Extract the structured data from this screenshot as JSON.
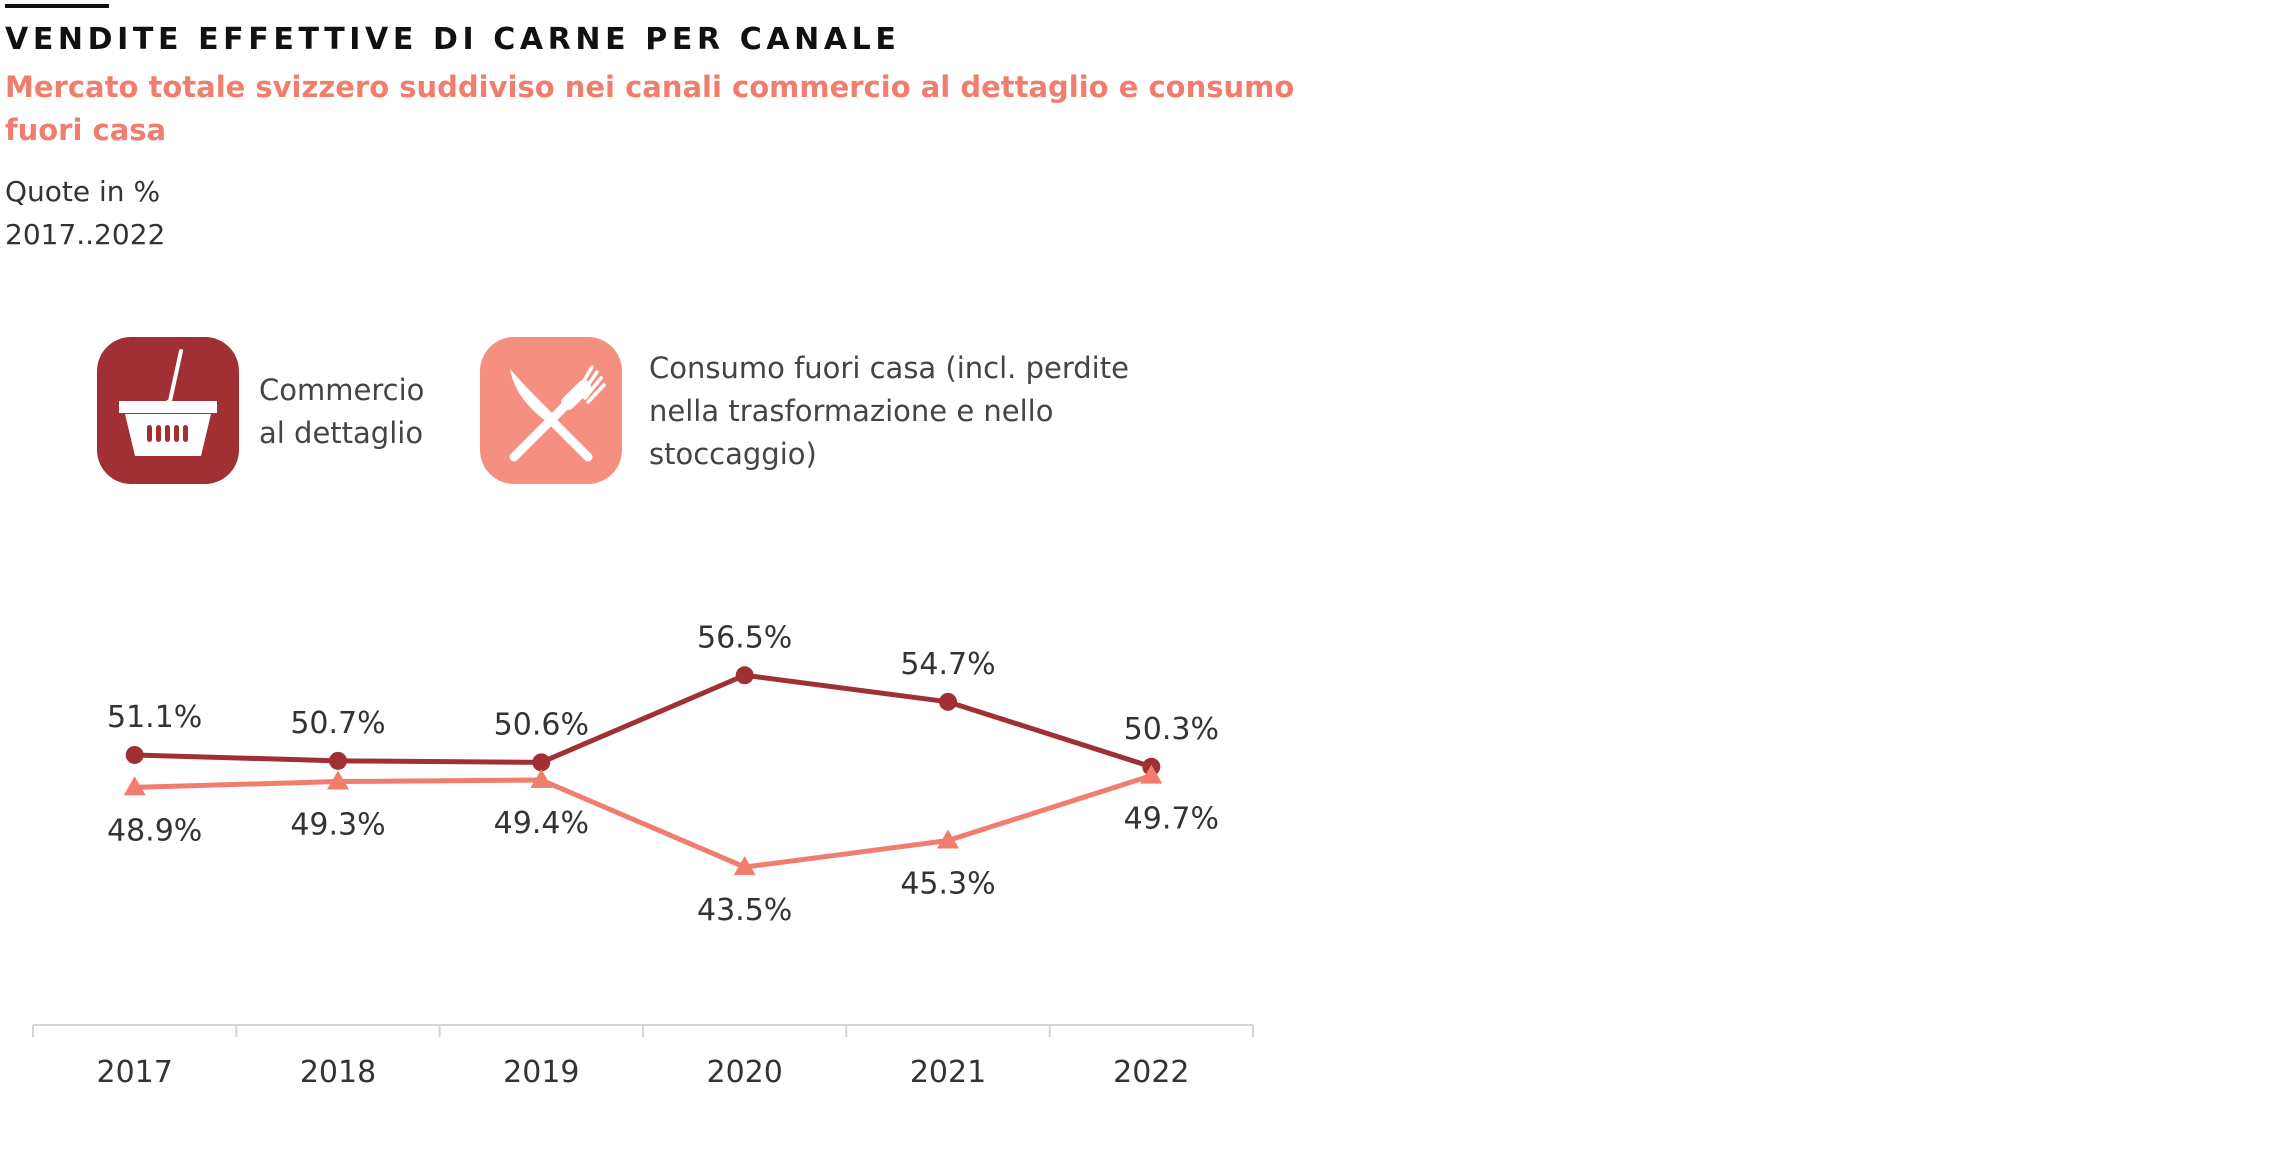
{
  "title": "VENDITE EFFETTIVE DI CARNE PER CANALE",
  "subtitle": "Mercato totale svizzero suddiviso nei canali commercio al dettaglio e consumo fuori casa",
  "units": "Quote in %",
  "period": "2017..2022",
  "colors": {
    "retail": "#a13035",
    "food_service": "#f17d6e",
    "food_service_icon": "#f48f82",
    "axis": "#d4d4d4",
    "label": "#333333"
  },
  "legend": {
    "retail": {
      "icon": "shopping-basket-icon",
      "label": "Commercio al dettaglio"
    },
    "food_service": {
      "icon": "knife-fork-icon",
      "label": "Consumo fuori casa (incl. perdite nella trasformazione e nello stoccaggio)"
    }
  },
  "chart_data": {
    "type": "line",
    "categories": [
      "2017",
      "2018",
      "2019",
      "2020",
      "2021",
      "2022"
    ],
    "series": [
      {
        "name": "Commercio al dettaglio",
        "marker": "circle",
        "values": [
          51.1,
          50.7,
          50.6,
          56.5,
          54.7,
          50.3
        ],
        "labels": [
          "51.1%",
          "50.7%",
          "50.6%",
          "56.5%",
          "54.7%",
          "50.3%"
        ]
      },
      {
        "name": "Consumo fuori casa (incl. perdite nella trasformazione e nello stoccaggio)",
        "marker": "triangle",
        "values": [
          48.9,
          49.3,
          49.4,
          43.5,
          45.3,
          49.7
        ],
        "labels": [
          "48.9%",
          "49.3%",
          "49.4%",
          "43.5%",
          "45.3%",
          "49.7%"
        ]
      }
    ],
    "title": "VENDITE EFFETTIVE DI CARNE PER CANALE",
    "xlabel": "",
    "ylabel": "Quote in %",
    "ylim": [
      32.8,
      61.6
    ],
    "grid": false,
    "legend_position": "top-left"
  }
}
